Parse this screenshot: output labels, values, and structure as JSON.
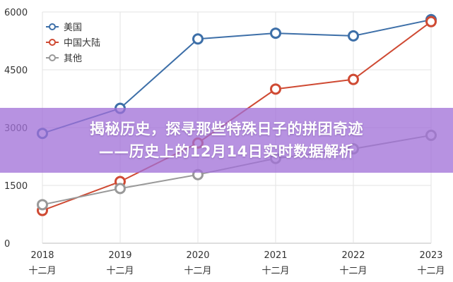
{
  "banner": {
    "line1": "揭秘历史，探寻那些特殊日子的拼团奇迹",
    "line2": "——历史上的12月14日实时数据解析"
  },
  "chart_data": {
    "type": "line",
    "x": [
      2018,
      2019,
      2020,
      2021,
      2022,
      2023
    ],
    "x_tick_labels": [
      {
        "year": "2018",
        "month": "十二月"
      },
      {
        "year": "2019",
        "month": "十二月"
      },
      {
        "year": "2020",
        "month": "十二月"
      },
      {
        "year": "2021",
        "month": "十二月"
      },
      {
        "year": "2022",
        "month": "十二月"
      },
      {
        "year": "2023",
        "month": "十二月"
      }
    ],
    "ylim": [
      0,
      6000
    ],
    "yticks": [
      0,
      1500,
      3000,
      4500,
      6000
    ],
    "grid": true,
    "legend_position": "top-left",
    "series": [
      {
        "name": "美国",
        "color": "#3d6fa8",
        "values": [
          2850,
          3500,
          5300,
          5450,
          5380,
          5800
        ]
      },
      {
        "name": "中国大陆",
        "color": "#cf4a33",
        "values": [
          850,
          1600,
          2600,
          4000,
          4250,
          5750
        ]
      },
      {
        "name": "其他",
        "color": "#999999",
        "values": [
          1000,
          1420,
          1780,
          2200,
          2450,
          2800
        ]
      }
    ]
  }
}
